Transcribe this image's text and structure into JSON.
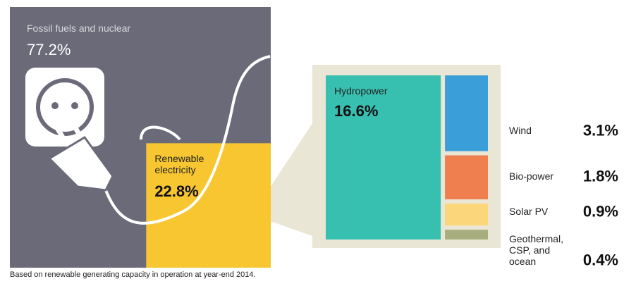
{
  "chart_data": {
    "type": "treemap",
    "caption": "Based on renewable generating capacity in operation at year-end 2014.",
    "categories": [
      "Fossil fuels and nuclear",
      "Renewable electricity"
    ],
    "values": [
      77.2,
      22.8
    ],
    "value_labels": [
      "77.2%",
      "22.8%"
    ],
    "colors": [
      "#6b6a78",
      "#f7c630"
    ],
    "breakdown": {
      "categories": [
        "Hydropower",
        "Wind",
        "Bio-power",
        "Solar PV",
        "Geothermal, CSP, and ocean"
      ],
      "values": [
        16.6,
        3.1,
        1.8,
        0.9,
        0.4
      ],
      "value_labels": [
        "16.6%",
        "3.1%",
        "1.8%",
        "0.9%",
        "0.4%"
      ],
      "colors": [
        "#37bfb0",
        "#3a9fd8",
        "#f07f4f",
        "#fcd67a",
        "#a8ad7e"
      ]
    }
  }
}
